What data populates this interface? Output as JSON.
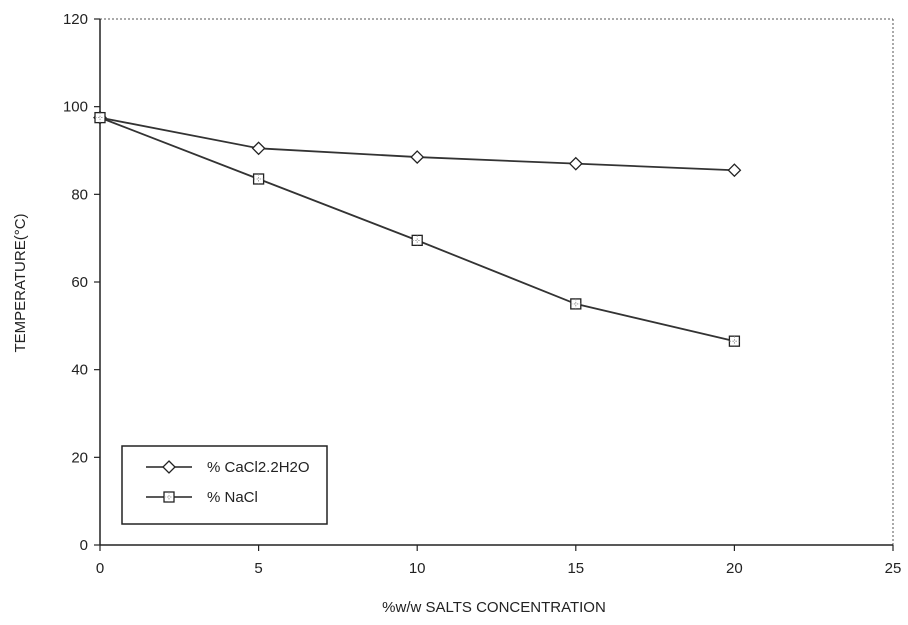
{
  "chart_data": {
    "type": "line",
    "title": "",
    "xlabel": "%w/w SALTS CONCENTRATION",
    "ylabel": "TEMPERATURE(°C)",
    "xlim": [
      0,
      25
    ],
    "ylim": [
      0,
      120
    ],
    "xticks": [
      0,
      5,
      10,
      15,
      20,
      25
    ],
    "yticks": [
      0,
      20,
      40,
      60,
      80,
      100,
      120
    ],
    "grid": false,
    "legend_position": "bottom-left",
    "series": [
      {
        "name": "% CaCl2.2H2O",
        "marker": "diamond",
        "color": "#333333",
        "x": [
          0,
          5,
          10,
          15,
          20
        ],
        "y": [
          97.5,
          90.5,
          88.5,
          87,
          85.5
        ]
      },
      {
        "name": "% NaCl",
        "marker": "square",
        "color": "#333333",
        "x": [
          0,
          5,
          10,
          15,
          20
        ],
        "y": [
          97.5,
          83.5,
          69.5,
          55,
          46.5
        ]
      }
    ]
  }
}
